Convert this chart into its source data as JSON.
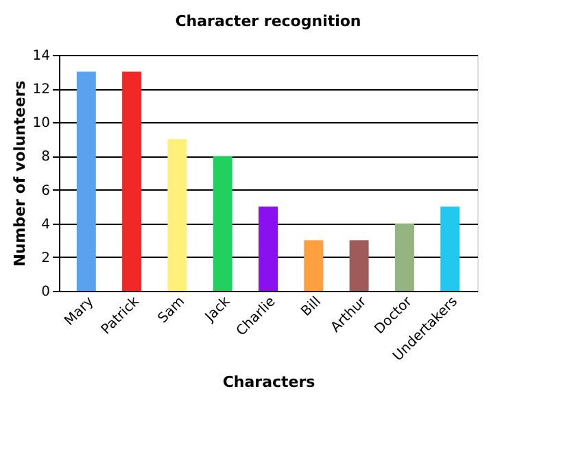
{
  "chart_data": {
    "type": "bar",
    "title": "Character recognition",
    "xlabel": "Characters",
    "ylabel": "Number of volunteers",
    "categories": [
      "Mary",
      "Patrick",
      "Sam",
      "Jack",
      "Charlie",
      "Bill",
      "Arthur",
      "Doctor",
      "Undertakers"
    ],
    "values": [
      13,
      13,
      9,
      8,
      5,
      3,
      3,
      4,
      5
    ],
    "colors": [
      "#5aa2f0",
      "#f02828",
      "#fff07a",
      "#22d060",
      "#8a10f0",
      "#ffa040",
      "#a05a5a",
      "#94b482",
      "#22c8f0"
    ],
    "ylim": [
      0,
      14
    ],
    "yticks": [
      0,
      2,
      4,
      6,
      8,
      10,
      12,
      14
    ],
    "grid": "y",
    "legend": false
  }
}
